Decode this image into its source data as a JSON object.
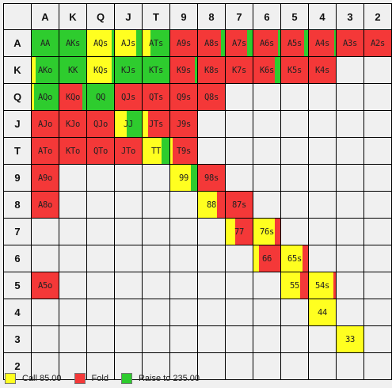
{
  "colors": {
    "call": "#ffff20",
    "fold": "#f43838",
    "raise": "#2ecc2e"
  },
  "ranks": [
    "A",
    "K",
    "Q",
    "J",
    "T",
    "9",
    "8",
    "7",
    "6",
    "5",
    "4",
    "3",
    "2"
  ],
  "hands": [
    [
      {
        "label": "AA",
        "call": 0,
        "fold": 0,
        "raise": 1
      },
      {
        "label": "AKs",
        "call": 0,
        "fold": 0,
        "raise": 1
      },
      {
        "label": "AQs",
        "call": 0.9,
        "fold": 0,
        "raise": 0.1
      },
      {
        "label": "AJs",
        "call": 0.8,
        "fold": 0,
        "raise": 0.2
      },
      {
        "label": "ATs",
        "call": 0.3,
        "fold": 0,
        "raise": 0.7
      },
      {
        "label": "A9s",
        "call": 0,
        "fold": 1,
        "raise": 0
      },
      {
        "label": "A8s",
        "call": 0,
        "fold": 0.85,
        "raise": 0.15
      },
      {
        "label": "A7s",
        "call": 0,
        "fold": 0.8,
        "raise": 0.2
      },
      {
        "label": "A6s",
        "call": 0,
        "fold": 0.9,
        "raise": 0.1
      },
      {
        "label": "A5s",
        "call": 0,
        "fold": 0.85,
        "raise": 0.15
      },
      {
        "label": "A4s",
        "call": 0,
        "fold": 0.95,
        "raise": 0.05
      },
      {
        "label": "A3s",
        "call": 0,
        "fold": 1,
        "raise": 0
      },
      {
        "label": "A2s",
        "call": 0,
        "fold": 1,
        "raise": 0
      }
    ],
    [
      {
        "label": "AKo",
        "call": 0.15,
        "fold": 0,
        "raise": 0.85
      },
      {
        "label": "KK",
        "call": 0,
        "fold": 0,
        "raise": 1
      },
      {
        "label": "KQs",
        "call": 0.9,
        "fold": 0,
        "raise": 0.1
      },
      {
        "label": "KJs",
        "call": 0,
        "fold": 0,
        "raise": 1
      },
      {
        "label": "KTs",
        "call": 0,
        "fold": 0,
        "raise": 1
      },
      {
        "label": "K9s",
        "call": 0,
        "fold": 0.9,
        "raise": 0.1
      },
      {
        "label": "K8s",
        "call": 0,
        "fold": 1,
        "raise": 0
      },
      {
        "label": "K7s",
        "call": 0,
        "fold": 1,
        "raise": 0
      },
      {
        "label": "K6s",
        "call": 0,
        "fold": 0.8,
        "raise": 0.2
      },
      {
        "label": "K5s",
        "call": 0,
        "fold": 1,
        "raise": 0
      },
      {
        "label": "K4s",
        "call": 0,
        "fold": 1,
        "raise": 0
      },
      {
        "label": "",
        "call": 0,
        "fold": 0,
        "raise": 0
      },
      {
        "label": "",
        "call": 0,
        "fold": 0,
        "raise": 0
      }
    ],
    [
      {
        "label": "AQo",
        "call": 0.1,
        "fold": 0,
        "raise": 0.9
      },
      {
        "label": "KQo",
        "call": 0,
        "fold": 0.85,
        "raise": 0.15
      },
      {
        "label": "QQ",
        "call": 0,
        "fold": 0,
        "raise": 1
      },
      {
        "label": "QJs",
        "call": 0,
        "fold": 1,
        "raise": 0
      },
      {
        "label": "QTs",
        "call": 0,
        "fold": 1,
        "raise": 0
      },
      {
        "label": "Q9s",
        "call": 0,
        "fold": 1,
        "raise": 0
      },
      {
        "label": "Q8s",
        "call": 0,
        "fold": 1,
        "raise": 0
      },
      {
        "label": "",
        "call": 0,
        "fold": 0,
        "raise": 0
      },
      {
        "label": "",
        "call": 0,
        "fold": 0,
        "raise": 0
      },
      {
        "label": "",
        "call": 0,
        "fold": 0,
        "raise": 0
      },
      {
        "label": "",
        "call": 0,
        "fold": 0,
        "raise": 0
      },
      {
        "label": "",
        "call": 0,
        "fold": 0,
        "raise": 0
      },
      {
        "label": "",
        "call": 0,
        "fold": 0,
        "raise": 0
      }
    ],
    [
      {
        "label": "AJo",
        "call": 0,
        "fold": 1,
        "raise": 0
      },
      {
        "label": "KJo",
        "call": 0,
        "fold": 1,
        "raise": 0
      },
      {
        "label": "QJo",
        "call": 0,
        "fold": 1,
        "raise": 0
      },
      {
        "label": "JJ",
        "call": 0.45,
        "fold": 0,
        "raise": 0.55
      },
      {
        "label": "JTs",
        "call": 0.2,
        "fold": 0.8,
        "raise": 0
      },
      {
        "label": "J9s",
        "call": 0,
        "fold": 1,
        "raise": 0
      },
      {
        "label": "",
        "call": 0,
        "fold": 0,
        "raise": 0
      },
      {
        "label": "",
        "call": 0,
        "fold": 0,
        "raise": 0
      },
      {
        "label": "",
        "call": 0,
        "fold": 0,
        "raise": 0
      },
      {
        "label": "",
        "call": 0,
        "fold": 0,
        "raise": 0
      },
      {
        "label": "",
        "call": 0,
        "fold": 0,
        "raise": 0
      },
      {
        "label": "",
        "call": 0,
        "fold": 0,
        "raise": 0
      },
      {
        "label": "",
        "call": 0,
        "fold": 0,
        "raise": 0
      }
    ],
    [
      {
        "label": "ATo",
        "call": 0,
        "fold": 1,
        "raise": 0
      },
      {
        "label": "KTo",
        "call": 0,
        "fold": 1,
        "raise": 0
      },
      {
        "label": "QTo",
        "call": 0,
        "fold": 1,
        "raise": 0
      },
      {
        "label": "JTo",
        "call": 0,
        "fold": 1,
        "raise": 0
      },
      {
        "label": "TT",
        "call": 0.7,
        "fold": 0,
        "raise": 0.3
      },
      {
        "label": "T9s",
        "call": 0.1,
        "fold": 0.9,
        "raise": 0
      },
      {
        "label": "",
        "call": 0,
        "fold": 0,
        "raise": 0
      },
      {
        "label": "",
        "call": 0,
        "fold": 0,
        "raise": 0
      },
      {
        "label": "",
        "call": 0,
        "fold": 0,
        "raise": 0
      },
      {
        "label": "",
        "call": 0,
        "fold": 0,
        "raise": 0
      },
      {
        "label": "",
        "call": 0,
        "fold": 0,
        "raise": 0
      },
      {
        "label": "",
        "call": 0,
        "fold": 0,
        "raise": 0
      },
      {
        "label": "",
        "call": 0,
        "fold": 0,
        "raise": 0
      }
    ],
    [
      {
        "label": "A9o",
        "call": 0,
        "fold": 1,
        "raise": 0
      },
      {
        "label": "",
        "call": 0,
        "fold": 0,
        "raise": 0
      },
      {
        "label": "",
        "call": 0,
        "fold": 0,
        "raise": 0
      },
      {
        "label": "",
        "call": 0,
        "fold": 0,
        "raise": 0
      },
      {
        "label": "",
        "call": 0,
        "fold": 0,
        "raise": 0
      },
      {
        "label": "99",
        "call": 0.75,
        "fold": 0,
        "raise": 0.25
      },
      {
        "label": "98s",
        "call": 0,
        "fold": 1,
        "raise": 0
      },
      {
        "label": "",
        "call": 0,
        "fold": 0,
        "raise": 0
      },
      {
        "label": "",
        "call": 0,
        "fold": 0,
        "raise": 0
      },
      {
        "label": "",
        "call": 0,
        "fold": 0,
        "raise": 0
      },
      {
        "label": "",
        "call": 0,
        "fold": 0,
        "raise": 0
      },
      {
        "label": "",
        "call": 0,
        "fold": 0,
        "raise": 0
      },
      {
        "label": "",
        "call": 0,
        "fold": 0,
        "raise": 0
      }
    ],
    [
      {
        "label": "A8o",
        "call": 0,
        "fold": 1,
        "raise": 0
      },
      {
        "label": "",
        "call": 0,
        "fold": 0,
        "raise": 0
      },
      {
        "label": "",
        "call": 0,
        "fold": 0,
        "raise": 0
      },
      {
        "label": "",
        "call": 0,
        "fold": 0,
        "raise": 0
      },
      {
        "label": "",
        "call": 0,
        "fold": 0,
        "raise": 0
      },
      {
        "label": "",
        "call": 0,
        "fold": 0,
        "raise": 0
      },
      {
        "label": "88",
        "call": 0.7,
        "fold": 0.3,
        "raise": 0
      },
      {
        "label": "87s",
        "call": 0,
        "fold": 1,
        "raise": 0
      },
      {
        "label": "",
        "call": 0,
        "fold": 0,
        "raise": 0
      },
      {
        "label": "",
        "call": 0,
        "fold": 0,
        "raise": 0
      },
      {
        "label": "",
        "call": 0,
        "fold": 0,
        "raise": 0
      },
      {
        "label": "",
        "call": 0,
        "fold": 0,
        "raise": 0
      },
      {
        "label": "",
        "call": 0,
        "fold": 0,
        "raise": 0
      }
    ],
    [
      {
        "label": "",
        "call": 0,
        "fold": 0,
        "raise": 0
      },
      {
        "label": "",
        "call": 0,
        "fold": 0,
        "raise": 0
      },
      {
        "label": "",
        "call": 0,
        "fold": 0,
        "raise": 0
      },
      {
        "label": "",
        "call": 0,
        "fold": 0,
        "raise": 0
      },
      {
        "label": "",
        "call": 0,
        "fold": 0,
        "raise": 0
      },
      {
        "label": "",
        "call": 0,
        "fold": 0,
        "raise": 0
      },
      {
        "label": "",
        "call": 0,
        "fold": 0,
        "raise": 0
      },
      {
        "label": "77",
        "call": 0.35,
        "fold": 0.65,
        "raise": 0
      },
      {
        "label": "76s",
        "call": 0.8,
        "fold": 0.2,
        "raise": 0
      },
      {
        "label": "",
        "call": 0,
        "fold": 0,
        "raise": 0
      },
      {
        "label": "",
        "call": 0,
        "fold": 0,
        "raise": 0
      },
      {
        "label": "",
        "call": 0,
        "fold": 0,
        "raise": 0
      },
      {
        "label": "",
        "call": 0,
        "fold": 0,
        "raise": 0
      }
    ],
    [
      {
        "label": "",
        "call": 0,
        "fold": 0,
        "raise": 0
      },
      {
        "label": "",
        "call": 0,
        "fold": 0,
        "raise": 0
      },
      {
        "label": "",
        "call": 0,
        "fold": 0,
        "raise": 0
      },
      {
        "label": "",
        "call": 0,
        "fold": 0,
        "raise": 0
      },
      {
        "label": "",
        "call": 0,
        "fold": 0,
        "raise": 0
      },
      {
        "label": "",
        "call": 0,
        "fold": 0,
        "raise": 0
      },
      {
        "label": "",
        "call": 0,
        "fold": 0,
        "raise": 0
      },
      {
        "label": "",
        "call": 0,
        "fold": 0,
        "raise": 0
      },
      {
        "label": "66",
        "call": 0.2,
        "fold": 0.8,
        "raise": 0
      },
      {
        "label": "65s",
        "call": 0.8,
        "fold": 0.2,
        "raise": 0
      },
      {
        "label": "",
        "call": 0,
        "fold": 0,
        "raise": 0
      },
      {
        "label": "",
        "call": 0,
        "fold": 0,
        "raise": 0
      },
      {
        "label": "",
        "call": 0,
        "fold": 0,
        "raise": 0
      }
    ],
    [
      {
        "label": "A5o",
        "call": 0,
        "fold": 1,
        "raise": 0
      },
      {
        "label": "",
        "call": 0,
        "fold": 0,
        "raise": 0
      },
      {
        "label": "",
        "call": 0,
        "fold": 0,
        "raise": 0
      },
      {
        "label": "",
        "call": 0,
        "fold": 0,
        "raise": 0
      },
      {
        "label": "",
        "call": 0,
        "fold": 0,
        "raise": 0
      },
      {
        "label": "",
        "call": 0,
        "fold": 0,
        "raise": 0
      },
      {
        "label": "",
        "call": 0,
        "fold": 0,
        "raise": 0
      },
      {
        "label": "",
        "call": 0,
        "fold": 0,
        "raise": 0
      },
      {
        "label": "",
        "call": 0,
        "fold": 0,
        "raise": 0
      },
      {
        "label": "55",
        "call": 0.7,
        "fold": 0.3,
        "raise": 0
      },
      {
        "label": "54s",
        "call": 0.9,
        "fold": 0.1,
        "raise": 0
      },
      {
        "label": "",
        "call": 0,
        "fold": 0,
        "raise": 0
      },
      {
        "label": "",
        "call": 0,
        "fold": 0,
        "raise": 0
      }
    ],
    [
      {
        "label": "",
        "call": 0,
        "fold": 0,
        "raise": 0
      },
      {
        "label": "",
        "call": 0,
        "fold": 0,
        "raise": 0
      },
      {
        "label": "",
        "call": 0,
        "fold": 0,
        "raise": 0
      },
      {
        "label": "",
        "call": 0,
        "fold": 0,
        "raise": 0
      },
      {
        "label": "",
        "call": 0,
        "fold": 0,
        "raise": 0
      },
      {
        "label": "",
        "call": 0,
        "fold": 0,
        "raise": 0
      },
      {
        "label": "",
        "call": 0,
        "fold": 0,
        "raise": 0
      },
      {
        "label": "",
        "call": 0,
        "fold": 0,
        "raise": 0
      },
      {
        "label": "",
        "call": 0,
        "fold": 0,
        "raise": 0
      },
      {
        "label": "",
        "call": 0,
        "fold": 0,
        "raise": 0
      },
      {
        "label": "44",
        "call": 1,
        "fold": 0,
        "raise": 0
      },
      {
        "label": "",
        "call": 0,
        "fold": 0,
        "raise": 0
      },
      {
        "label": "",
        "call": 0,
        "fold": 0,
        "raise": 0
      }
    ],
    [
      {
        "label": "",
        "call": 0,
        "fold": 0,
        "raise": 0
      },
      {
        "label": "",
        "call": 0,
        "fold": 0,
        "raise": 0
      },
      {
        "label": "",
        "call": 0,
        "fold": 0,
        "raise": 0
      },
      {
        "label": "",
        "call": 0,
        "fold": 0,
        "raise": 0
      },
      {
        "label": "",
        "call": 0,
        "fold": 0,
        "raise": 0
      },
      {
        "label": "",
        "call": 0,
        "fold": 0,
        "raise": 0
      },
      {
        "label": "",
        "call": 0,
        "fold": 0,
        "raise": 0
      },
      {
        "label": "",
        "call": 0,
        "fold": 0,
        "raise": 0
      },
      {
        "label": "",
        "call": 0,
        "fold": 0,
        "raise": 0
      },
      {
        "label": "",
        "call": 0,
        "fold": 0,
        "raise": 0
      },
      {
        "label": "",
        "call": 0,
        "fold": 0,
        "raise": 0
      },
      {
        "label": "33",
        "call": 1,
        "fold": 0,
        "raise": 0
      },
      {
        "label": "",
        "call": 0,
        "fold": 0,
        "raise": 0
      }
    ],
    [
      {
        "label": "",
        "call": 0,
        "fold": 0,
        "raise": 0
      },
      {
        "label": "",
        "call": 0,
        "fold": 0,
        "raise": 0
      },
      {
        "label": "",
        "call": 0,
        "fold": 0,
        "raise": 0
      },
      {
        "label": "",
        "call": 0,
        "fold": 0,
        "raise": 0
      },
      {
        "label": "",
        "call": 0,
        "fold": 0,
        "raise": 0
      },
      {
        "label": "",
        "call": 0,
        "fold": 0,
        "raise": 0
      },
      {
        "label": "",
        "call": 0,
        "fold": 0,
        "raise": 0
      },
      {
        "label": "",
        "call": 0,
        "fold": 0,
        "raise": 0
      },
      {
        "label": "",
        "call": 0,
        "fold": 0,
        "raise": 0
      },
      {
        "label": "",
        "call": 0,
        "fold": 0,
        "raise": 0
      },
      {
        "label": "",
        "call": 0,
        "fold": 0,
        "raise": 0
      },
      {
        "label": "",
        "call": 0,
        "fold": 0,
        "raise": 0
      },
      {
        "label": "",
        "call": 0,
        "fold": 0,
        "raise": 0
      }
    ]
  ],
  "legend": {
    "call": "Call 85.00",
    "fold": "Fold",
    "raise": "Raise to 235.00"
  }
}
